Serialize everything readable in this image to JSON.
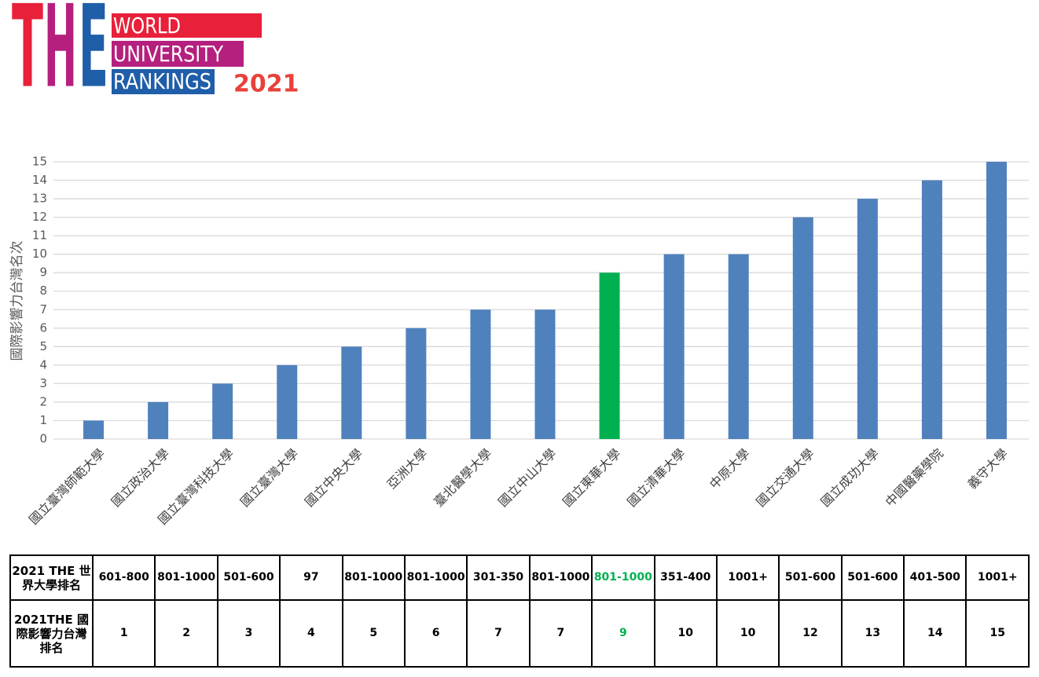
{
  "logo": {
    "letters": [
      "T",
      "H",
      "E"
    ],
    "lines": [
      "WORLD",
      "UNIVERSITY",
      "RANKINGS"
    ],
    "year": "2021"
  },
  "chart_data": {
    "type": "bar",
    "ylabel": "國際影響力台灣名次",
    "categories": [
      "國立臺灣師範大學",
      "國立政治大學",
      "國立臺灣科技大學",
      "國立臺灣大學",
      "國立中央大學",
      "亞洲大學",
      "臺北醫學大學",
      "國立中山大學",
      "國立東華大學",
      "國立清華大學",
      "中原大學",
      "國立交通大學",
      "國立成功大學",
      "中國醫藥學院",
      "義守大學"
    ],
    "values": [
      1,
      2,
      3,
      4,
      5,
      6,
      7,
      7,
      9,
      10,
      10,
      12,
      13,
      14,
      15
    ],
    "color": "#4f81bd",
    "highlight": {
      "index": 8,
      "color": "#00b050"
    },
    "ylim": [
      0,
      15
    ],
    "yticks": [
      0,
      1,
      2,
      3,
      4,
      5,
      6,
      7,
      8,
      9,
      10,
      11,
      12,
      13,
      14,
      15
    ],
    "grid": true
  },
  "table": {
    "row_headers": [
      "2021 THE 世界大學排名",
      "2021THE 國際影響力台灣排名"
    ],
    "world_ranks": [
      "601-800",
      "801-1000",
      "501-600",
      "97",
      "801-1000",
      "801-1000",
      "301-350",
      "801-1000",
      "801-1000",
      "351-400",
      "1001+",
      "501-600",
      "501-600",
      "401-500",
      "1001+"
    ]
  }
}
